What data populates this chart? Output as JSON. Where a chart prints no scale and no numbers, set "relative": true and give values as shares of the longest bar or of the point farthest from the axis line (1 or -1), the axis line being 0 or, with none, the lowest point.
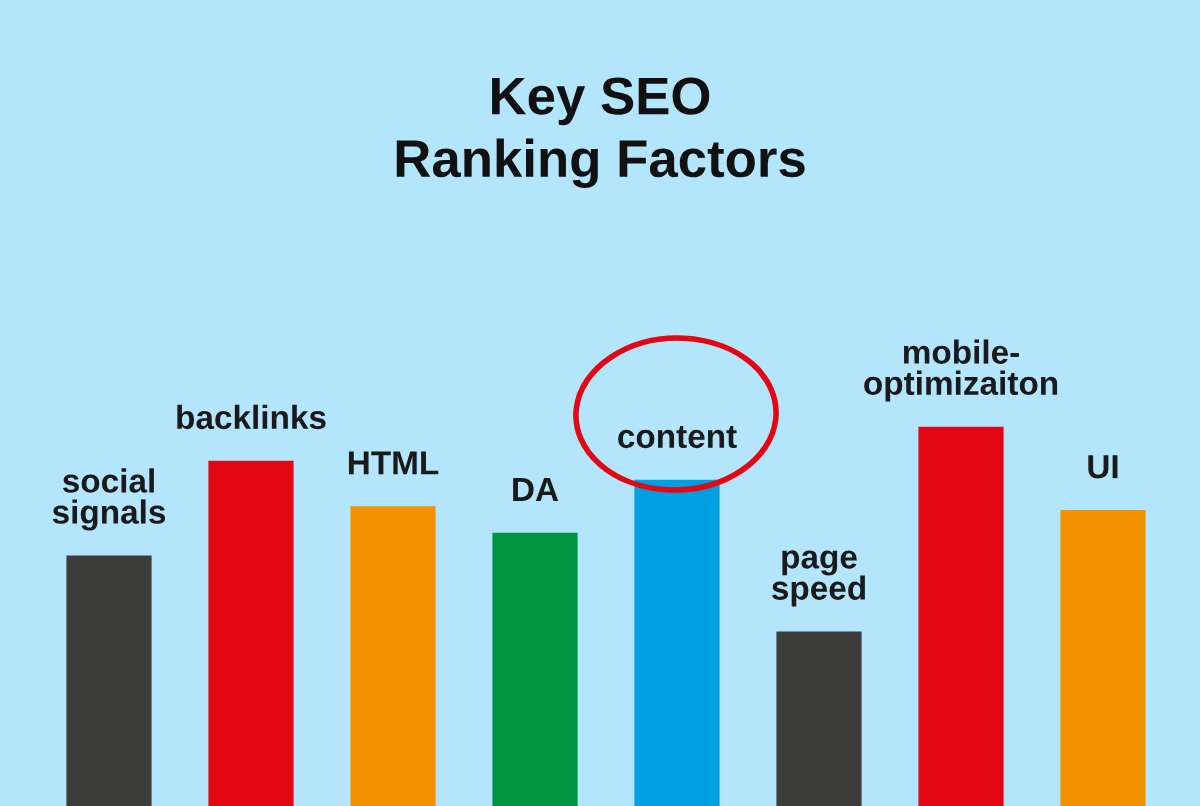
{
  "chart_data": {
    "type": "bar",
    "title": "Key SEO\nRanking Factors",
    "categories": [
      "social\nsignals",
      "backlinks",
      "HTML",
      "DA",
      "content",
      "page\nspeed",
      "mobile-\noptimizaiton",
      "UI"
    ],
    "values": [
      0.66,
      0.91,
      0.79,
      0.72,
      0.86,
      0.46,
      1,
      0.78
    ],
    "colors": [
      "#3c3c3b",
      "#e30613",
      "#f39200",
      "#009640",
      "#009fe3",
      "#3c3c3b",
      "#e30613",
      "#f39200"
    ],
    "relative": true
  }
}
